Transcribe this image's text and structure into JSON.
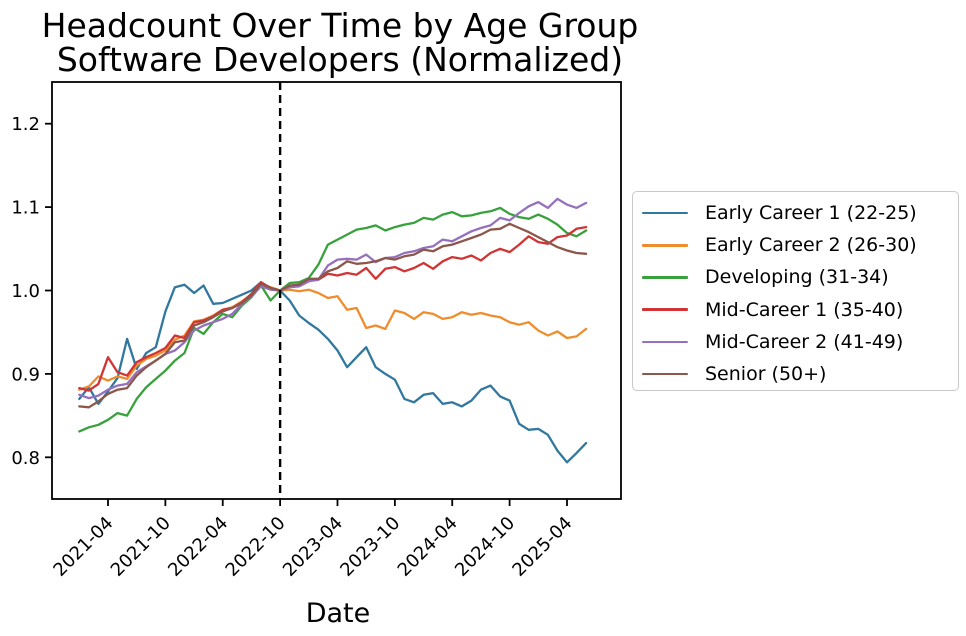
{
  "title": {
    "line1": "Headcount Over Time by Age Group",
    "line2": "Software Developers (Normalized)"
  },
  "axes": {
    "xlabel": "Date",
    "x_ticks": [
      "2021-04",
      "2021-10",
      "2022-04",
      "2022-10",
      "2023-04",
      "2023-10",
      "2024-04",
      "2024-10",
      "2025-04"
    ],
    "y_ticks": [
      "0.8",
      "0.9",
      "1.0",
      "1.1",
      "1.2"
    ]
  },
  "chart_data": {
    "type": "line",
    "title": "Headcount Over Time by Age Group",
    "subtitle": "Software Developers (Normalized)",
    "xlabel": "Date",
    "ylabel": "",
    "ylim": [
      0.75,
      1.25
    ],
    "grid": false,
    "legend_position": "right",
    "normalization_note": "all series equal 1.0 at 2022-10 (dashed vline)",
    "x": [
      "2021-01",
      "2021-02",
      "2021-03",
      "2021-04",
      "2021-05",
      "2021-06",
      "2021-07",
      "2021-08",
      "2021-09",
      "2021-10",
      "2021-11",
      "2021-12",
      "2022-01",
      "2022-02",
      "2022-03",
      "2022-04",
      "2022-05",
      "2022-06",
      "2022-07",
      "2022-08",
      "2022-09",
      "2022-10",
      "2022-11",
      "2022-12",
      "2023-01",
      "2023-02",
      "2023-03",
      "2023-04",
      "2023-05",
      "2023-06",
      "2023-07",
      "2023-08",
      "2023-09",
      "2023-10",
      "2023-11",
      "2023-12",
      "2024-01",
      "2024-02",
      "2024-03",
      "2024-04",
      "2024-05",
      "2024-06",
      "2024-07",
      "2024-08",
      "2024-09",
      "2024-10",
      "2024-11",
      "2024-12",
      "2025-01",
      "2025-02",
      "2025-03",
      "2025-04",
      "2025-05",
      "2025-06"
    ],
    "series": [
      {
        "name": "Early Career 1 (22-25)",
        "color": "#31789e",
        "values": [
          0.87,
          0.884,
          0.864,
          0.879,
          0.895,
          0.942,
          0.906,
          0.925,
          0.932,
          0.975,
          1.004,
          1.007,
          0.997,
          1.006,
          0.984,
          0.985,
          0.99,
          0.995,
          1.0,
          1.01,
          1.002,
          1.0,
          0.988,
          0.97,
          0.961,
          0.953,
          0.942,
          0.928,
          0.908,
          0.92,
          0.932,
          0.908,
          0.9,
          0.893,
          0.87,
          0.866,
          0.875,
          0.877,
          0.864,
          0.866,
          0.861,
          0.868,
          0.881,
          0.886,
          0.873,
          0.868,
          0.84,
          0.833,
          0.834,
          0.827,
          0.808,
          0.794,
          0.805,
          0.817
        ]
      },
      {
        "name": "Early Career 2 (26-30)",
        "color": "#ef8d2c",
        "values": [
          0.881,
          0.885,
          0.897,
          0.892,
          0.897,
          0.894,
          0.91,
          0.918,
          0.922,
          0.928,
          0.941,
          0.946,
          0.963,
          0.965,
          0.97,
          0.977,
          0.98,
          0.987,
          0.995,
          1.008,
          1.004,
          1.0,
          1.001,
          0.999,
          1.001,
          0.997,
          0.991,
          0.993,
          0.977,
          0.979,
          0.955,
          0.958,
          0.954,
          0.976,
          0.973,
          0.966,
          0.974,
          0.972,
          0.966,
          0.968,
          0.974,
          0.971,
          0.973,
          0.97,
          0.968,
          0.962,
          0.959,
          0.962,
          0.952,
          0.946,
          0.951,
          0.943,
          0.945,
          0.954
        ]
      },
      {
        "name": "Developing (31-34)",
        "color": "#38a13c",
        "values": [
          0.831,
          0.836,
          0.839,
          0.845,
          0.853,
          0.85,
          0.87,
          0.884,
          0.894,
          0.904,
          0.916,
          0.925,
          0.955,
          0.948,
          0.962,
          0.972,
          0.968,
          0.982,
          0.992,
          1.006,
          0.988,
          1.0,
          1.009,
          1.01,
          1.015,
          1.031,
          1.055,
          1.061,
          1.067,
          1.073,
          1.075,
          1.078,
          1.072,
          1.076,
          1.079,
          1.081,
          1.087,
          1.085,
          1.091,
          1.094,
          1.089,
          1.09,
          1.093,
          1.095,
          1.099,
          1.092,
          1.088,
          1.086,
          1.091,
          1.086,
          1.079,
          1.069,
          1.065,
          1.072
        ]
      },
      {
        "name": "Mid-Career 1 (35-40)",
        "color": "#d13434",
        "values": [
          0.883,
          0.88,
          0.888,
          0.92,
          0.902,
          0.898,
          0.914,
          0.92,
          0.925,
          0.931,
          0.946,
          0.943,
          0.962,
          0.964,
          0.969,
          0.977,
          0.979,
          0.986,
          0.996,
          1.01,
          1.003,
          1.0,
          1.005,
          1.007,
          1.012,
          1.013,
          1.02,
          1.018,
          1.021,
          1.019,
          1.027,
          1.014,
          1.026,
          1.028,
          1.023,
          1.027,
          1.033,
          1.026,
          1.035,
          1.04,
          1.038,
          1.042,
          1.036,
          1.045,
          1.05,
          1.046,
          1.055,
          1.065,
          1.058,
          1.056,
          1.064,
          1.066,
          1.074,
          1.076
        ]
      },
      {
        "name": "Mid-Career 2 (41-49)",
        "color": "#9571bd",
        "values": [
          0.875,
          0.871,
          0.874,
          0.881,
          0.886,
          0.888,
          0.902,
          0.909,
          0.916,
          0.924,
          0.928,
          0.938,
          0.952,
          0.958,
          0.962,
          0.966,
          0.972,
          0.984,
          0.993,
          1.005,
          1.001,
          1.0,
          1.004,
          1.005,
          1.011,
          1.013,
          1.03,
          1.037,
          1.038,
          1.037,
          1.043,
          1.034,
          1.039,
          1.04,
          1.045,
          1.047,
          1.051,
          1.053,
          1.061,
          1.059,
          1.065,
          1.071,
          1.075,
          1.078,
          1.087,
          1.084,
          1.093,
          1.101,
          1.106,
          1.099,
          1.11,
          1.103,
          1.099,
          1.105
        ]
      },
      {
        "name": "Senior (50+)",
        "color": "#8c564b",
        "values": [
          0.861,
          0.86,
          0.867,
          0.876,
          0.881,
          0.883,
          0.898,
          0.908,
          0.916,
          0.924,
          0.938,
          0.94,
          0.958,
          0.962,
          0.968,
          0.975,
          0.979,
          0.985,
          0.994,
          1.008,
          1.003,
          1.0,
          1.006,
          1.007,
          1.014,
          1.014,
          1.023,
          1.027,
          1.035,
          1.032,
          1.033,
          1.035,
          1.039,
          1.037,
          1.041,
          1.043,
          1.049,
          1.047,
          1.053,
          1.055,
          1.059,
          1.063,
          1.067,
          1.073,
          1.074,
          1.08,
          1.075,
          1.07,
          1.064,
          1.058,
          1.052,
          1.048,
          1.045,
          1.044
        ]
      }
    ],
    "annotations": [
      {
        "type": "vline",
        "x": "2022-10",
        "linestyle": "dashed",
        "color": "#000000"
      }
    ]
  },
  "legend": {
    "items": [
      {
        "label": "Early Career 1 (22-25)",
        "color": "#31789e"
      },
      {
        "label": "Early Career 2 (26-30)",
        "color": "#ef8d2c"
      },
      {
        "label": "Developing (31-34)",
        "color": "#38a13c"
      },
      {
        "label": "Mid-Career 1 (35-40)",
        "color": "#d13434"
      },
      {
        "label": "Mid-Career 2 (41-49)",
        "color": "#9571bd"
      },
      {
        "label": "Senior (50+)",
        "color": "#8c564b"
      }
    ]
  }
}
